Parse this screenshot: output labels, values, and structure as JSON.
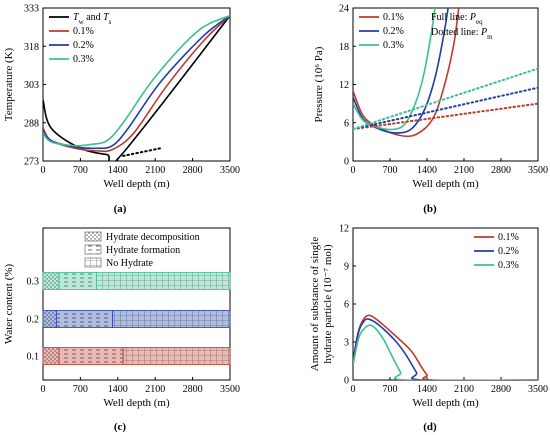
{
  "chart_data": [
    {
      "panel_label": "(a)",
      "type": "line",
      "xlabel": "Well depth (m)",
      "ylabel": "Temperature (K)",
      "xlim": [
        0,
        3500
      ],
      "ylim": [
        273,
        333
      ],
      "xticks": [
        "0",
        "700",
        "1400",
        "2100",
        "2800",
        "3500"
      ],
      "yticks": [
        "273",
        "288",
        "303",
        "318",
        "333"
      ],
      "legend_position": "top-left",
      "series": [
        {
          "name": "T_w and T_s",
          "legend_parts": [
            "T",
            "w",
            " and ",
            "T",
            "s"
          ],
          "color": "#000000",
          "style": "solid",
          "x": [
            0,
            150,
            700,
            1200,
            1450,
            3500
          ],
          "y": [
            297,
            286,
            278,
            275.5,
            275,
            330
          ]
        },
        {
          "name": "T (dotted)",
          "color": "#000000",
          "style": "dotted",
          "show_in_legend": false,
          "x": [
            1500,
            2200
          ],
          "y": [
            275,
            278
          ]
        },
        {
          "name": "0.1%",
          "color": "#c0392b",
          "style": "solid",
          "x": [
            0,
            150,
            600,
            1000,
            1300,
            1700,
            2300,
            3000,
            3500
          ],
          "y": [
            286,
            281,
            278,
            277,
            277.5,
            284,
            302,
            320,
            330
          ]
        },
        {
          "name": "0.2%",
          "color": "#1f3fa8",
          "style": "solid",
          "x": [
            0,
            150,
            600,
            1000,
            1300,
            1600,
            2200,
            3000,
            3500
          ],
          "y": [
            285,
            281,
            278.5,
            278,
            279,
            286,
            304,
            322,
            330
          ]
        },
        {
          "name": "0.3%",
          "color": "#3dbf8f",
          "style": "solid",
          "x": [
            0,
            150,
            600,
            900,
            1200,
            1500,
            2100,
            2900,
            3500
          ],
          "y": [
            284,
            280.5,
            279,
            279.5,
            281,
            288,
            306,
            324,
            330
          ]
        }
      ]
    },
    {
      "panel_label": "(b)",
      "type": "line",
      "xlabel": "Well depth (m)",
      "ylabel": "Pressure (10⁶ Pa)",
      "xlim": [
        0,
        3500
      ],
      "ylim": [
        0,
        24
      ],
      "xticks": [
        "0",
        "700",
        "1400",
        "2100",
        "2800",
        "3500"
      ],
      "yticks": [
        "0",
        "6",
        "12",
        "18",
        "24"
      ],
      "legend_position": "top-left",
      "annotations": [
        "Full line: P_eq",
        "Dotted line: P_m"
      ],
      "annotation_parts": [
        [
          "Full line: ",
          "P",
          "eq"
        ],
        [
          "Dotted line: ",
          "P",
          "m"
        ]
      ],
      "series": [
        {
          "name": "0.1%",
          "color": "#c0392b",
          "style": "solid",
          "x": [
            0,
            200,
            500,
            900,
            1200,
            1500,
            1700,
            1900,
            2000
          ],
          "y": [
            11,
            7,
            5.2,
            4,
            4.2,
            6.5,
            11,
            18,
            24
          ]
        },
        {
          "name": "0.2%",
          "color": "#1f3fa8",
          "style": "solid",
          "x": [
            0,
            200,
            500,
            800,
            1100,
            1350,
            1550,
            1700,
            1800
          ],
          "y": [
            10,
            6.5,
            5,
            4.4,
            5,
            8,
            13,
            19,
            24
          ]
        },
        {
          "name": "0.3%",
          "color": "#3dbf8f",
          "style": "solid",
          "x": [
            0,
            200,
            500,
            800,
            1000,
            1200,
            1350,
            1500,
            1550
          ],
          "y": [
            9,
            6.3,
            5.2,
            5,
            6,
            9.5,
            14,
            21,
            24
          ]
        },
        {
          "name": "0.1% P_m",
          "color": "#c0392b",
          "style": "dotted",
          "show_in_legend": false,
          "x": [
            0,
            3500
          ],
          "y": [
            5,
            9
          ]
        },
        {
          "name": "0.2% P_m",
          "color": "#1f3fa8",
          "style": "dotted",
          "show_in_legend": false,
          "x": [
            0,
            3500
          ],
          "y": [
            5,
            11.5
          ]
        },
        {
          "name": "0.3% P_m",
          "color": "#3dbf8f",
          "style": "dotted",
          "show_in_legend": false,
          "x": [
            0,
            3500
          ],
          "y": [
            5,
            14.5
          ]
        }
      ]
    },
    {
      "panel_label": "(c)",
      "type": "bar",
      "orientation": "horizontal",
      "xlabel": "Well depth (m)",
      "ylabel": "Water content (%)",
      "xlim": [
        0,
        3500
      ],
      "xticks": [
        "0",
        "700",
        "1400",
        "2100",
        "2800",
        "3500"
      ],
      "yticks": [
        "0.1",
        "0.2",
        "0.3"
      ],
      "legend_position": "top",
      "legend": [
        {
          "label": "Hydrate decomposition",
          "pattern": "dots"
        },
        {
          "label": "Hydrate formation",
          "pattern": "dashes"
        },
        {
          "label": "No Hydrate",
          "pattern": "grid"
        }
      ],
      "rows": [
        {
          "water_content": "0.3",
          "color": "#3dbf8f",
          "segments": [
            {
              "type": "Hydrate decomposition",
              "from": 0,
              "to": 300
            },
            {
              "type": "Hydrate formation",
              "from": 300,
              "to": 1000
            },
            {
              "type": "No Hydrate",
              "from": 1000,
              "to": 3500
            }
          ]
        },
        {
          "water_content": "0.2",
          "color": "#1f3fa8",
          "segments": [
            {
              "type": "Hydrate decomposition",
              "from": 0,
              "to": 250
            },
            {
              "type": "Hydrate formation",
              "from": 250,
              "to": 1300
            },
            {
              "type": "No Hydrate",
              "from": 1300,
              "to": 3500
            }
          ]
        },
        {
          "water_content": "0.1",
          "color": "#c0392b",
          "segments": [
            {
              "type": "Hydrate decomposition",
              "from": 0,
              "to": 300
            },
            {
              "type": "Hydrate formation",
              "from": 300,
              "to": 1500
            },
            {
              "type": "No Hydrate",
              "from": 1500,
              "to": 3500
            }
          ]
        }
      ]
    },
    {
      "panel_label": "(d)",
      "type": "line",
      "xlabel": "Well depth (m)",
      "ylabel_lines": [
        "Amount of substance of single",
        "hydrate particle (10⁻⁷ mol)"
      ],
      "xlim": [
        0,
        3500
      ],
      "ylim": [
        0,
        12
      ],
      "xticks": [
        "0",
        "700",
        "1400",
        "2100",
        "2800",
        "3500"
      ],
      "yticks": [
        "0",
        "3",
        "6",
        "9",
        "12"
      ],
      "legend_position": "top-right",
      "series": [
        {
          "name": "0.1%",
          "color": "#c0392b",
          "style": "solid",
          "x": [
            0,
            100,
            200,
            320,
            500,
            800,
            1100,
            1300,
            1400,
            1500,
            3500
          ],
          "y": [
            1.5,
            3.8,
            4.8,
            5.1,
            4.6,
            3.5,
            2.3,
            1.0,
            0.4,
            0,
            0
          ]
        },
        {
          "name": "0.2%",
          "color": "#1f3fa8",
          "style": "solid",
          "x": [
            0,
            100,
            200,
            300,
            500,
            800,
            1000,
            1200,
            1300,
            3500
          ],
          "y": [
            1.4,
            3.7,
            4.6,
            4.8,
            4.3,
            3.1,
            2.0,
            0.6,
            0,
            0
          ]
        },
        {
          "name": "0.3%",
          "color": "#3dbf8f",
          "style": "solid",
          "x": [
            0,
            100,
            200,
            350,
            550,
            750,
            900,
            1000,
            3500
          ],
          "y": [
            1.2,
            3.2,
            4.0,
            4.3,
            3.4,
            1.8,
            0.6,
            0,
            0
          ]
        }
      ]
    }
  ]
}
